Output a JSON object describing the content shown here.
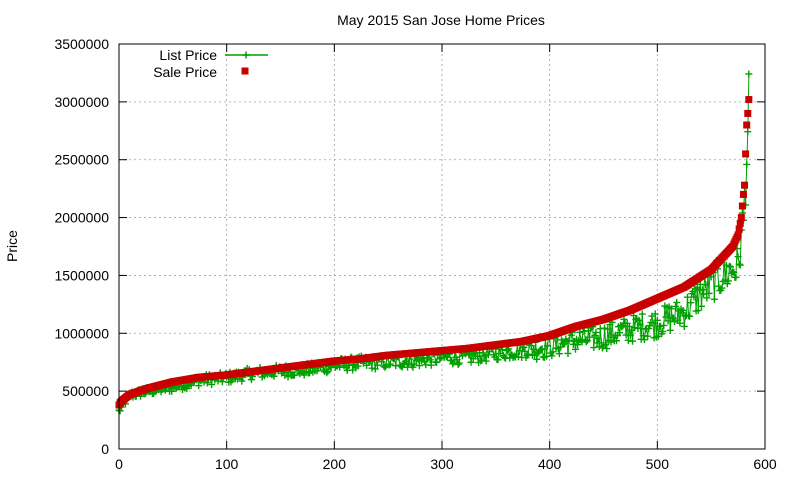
{
  "chart_data": {
    "type": "line",
    "title": "May 2015 San Jose Home Prices",
    "xlabel": "",
    "ylabel": "Price",
    "xlim": [
      0,
      600
    ],
    "ylim": [
      0,
      3500000
    ],
    "x_ticks": [
      0,
      100,
      200,
      300,
      400,
      500,
      600
    ],
    "y_ticks": [
      0,
      500000,
      1000000,
      1500000,
      2000000,
      2500000,
      3000000,
      3500000
    ],
    "grid": true,
    "legend_position": "top-left",
    "n_points": 586,
    "series": [
      {
        "name": "List Price",
        "color": "#00a000",
        "marker": "plus",
        "line": true,
        "x": [
          0,
          10,
          25,
          50,
          75,
          100,
          125,
          150,
          175,
          200,
          225,
          250,
          275,
          300,
          325,
          350,
          375,
          400,
          425,
          450,
          475,
          500,
          525,
          550,
          575,
          580,
          583,
          585
        ],
        "values": [
          330000,
          470000,
          500000,
          540000,
          600000,
          620000,
          660000,
          680000,
          690000,
          730000,
          750000,
          760000,
          770000,
          800000,
          800000,
          840000,
          860000,
          900000,
          950000,
          980000,
          1050000,
          1100000,
          1200000,
          1450000,
          1600000,
          2000000,
          2600000,
          2950000
        ]
      },
      {
        "name": "Sale Price",
        "color": "#c80000",
        "marker": "square",
        "line": false,
        "x": [
          0,
          1,
          3,
          10,
          25,
          50,
          75,
          100,
          125,
          150,
          175,
          200,
          225,
          250,
          275,
          300,
          325,
          350,
          375,
          400,
          425,
          450,
          475,
          500,
          525,
          550,
          560,
          570,
          575,
          578,
          580,
          581,
          582,
          583,
          584,
          585
        ],
        "values": [
          380000,
          400000,
          420000,
          470000,
          520000,
          580000,
          620000,
          640000,
          670000,
          700000,
          730000,
          760000,
          780000,
          810000,
          830000,
          850000,
          870000,
          900000,
          930000,
          980000,
          1060000,
          1120000,
          1200000,
          1300000,
          1400000,
          1550000,
          1650000,
          1750000,
          1850000,
          2000000,
          2200000,
          2280000,
          2550000,
          2800000,
          2900000,
          3020000
        ]
      }
    ]
  }
}
